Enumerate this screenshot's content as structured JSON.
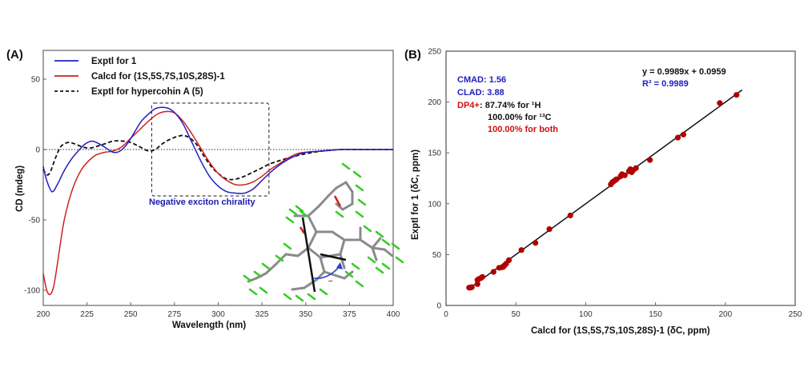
{
  "chart_data": [
    {
      "panel_label": "(A)",
      "type": "line",
      "xlabel": "Wavelength (nm)",
      "ylabel": "CD (mdeg)",
      "xlim": [
        200,
        400
      ],
      "ylim": [
        -110,
        70
      ],
      "xticks": [
        200,
        225,
        250,
        275,
        300,
        325,
        350,
        375,
        400
      ],
      "yticks": [
        50,
        0,
        -50,
        -100
      ],
      "zero_line": true,
      "legend_position": "top-left",
      "series": [
        {
          "name": "Exptl for 1",
          "color": "#2020c0",
          "style": "solid",
          "x": [
            200,
            202,
            205,
            208,
            212,
            216,
            220,
            224,
            228,
            232,
            236,
            240,
            244,
            248,
            252,
            256,
            260,
            264,
            268,
            272,
            276,
            280,
            285,
            290,
            295,
            300,
            305,
            310,
            315,
            320,
            325,
            330,
            335,
            340,
            345,
            350,
            360,
            370,
            380,
            390,
            400
          ],
          "y": [
            -12,
            -22,
            -30,
            -25,
            -15,
            -7,
            -1,
            4,
            6,
            4,
            1,
            -2,
            -1,
            4,
            12,
            20,
            25,
            29,
            30,
            29,
            25,
            18,
            5,
            -8,
            -19,
            -26,
            -30,
            -31,
            -31,
            -28,
            -22,
            -16,
            -11,
            -7,
            -4,
            -2,
            -1,
            0,
            0,
            0,
            0
          ]
        },
        {
          "name": "Calcd for (1S,5S,7S,10S,28S)-1",
          "color": "#d02020",
          "style": "solid",
          "x": [
            200,
            202,
            204,
            206,
            208,
            210,
            212,
            215,
            218,
            222,
            226,
            230,
            235,
            240,
            245,
            250,
            255,
            260,
            265,
            270,
            275,
            280,
            285,
            290,
            295,
            300,
            305,
            310,
            315,
            320,
            325,
            330,
            335,
            340,
            345,
            350,
            360,
            370,
            380,
            400
          ],
          "y": [
            -88,
            -100,
            -103,
            -97,
            -82,
            -65,
            -50,
            -35,
            -24,
            -14,
            -8,
            -4,
            -2,
            -1,
            2,
            8,
            14,
            20,
            25,
            27,
            26,
            20,
            11,
            1,
            -9,
            -17,
            -22,
            -25,
            -25,
            -23,
            -19,
            -14,
            -10,
            -6,
            -3,
            -2,
            -1,
            0,
            0,
            0
          ]
        },
        {
          "name": "Exptl for hypercohin A (5)",
          "color": "#111111",
          "style": "dashed",
          "x": [
            200,
            202,
            204,
            207,
            210,
            214,
            218,
            222,
            226,
            230,
            235,
            240,
            245,
            250,
            255,
            260,
            264,
            268,
            272,
            276,
            280,
            284,
            288,
            292,
            296,
            300,
            305,
            310,
            315,
            320,
            325,
            330,
            340,
            350,
            360,
            370,
            380,
            400
          ],
          "y": [
            -14,
            -18,
            -16,
            -6,
            2,
            5,
            4,
            2,
            1,
            2,
            4,
            6,
            6,
            5,
            2,
            -1,
            0,
            4,
            7,
            9,
            10,
            8,
            3,
            -5,
            -12,
            -17,
            -21,
            -21,
            -19,
            -16,
            -13,
            -10,
            -6,
            -3,
            -1,
            0,
            0,
            0
          ]
        }
      ],
      "highlight_box": {
        "x_range": [
          262,
          329
        ],
        "y_range": [
          -33,
          33
        ]
      },
      "annotation": "Negative exciton chirality",
      "annotation_color": "#1a1ab0"
    },
    {
      "panel_label": "(B)",
      "type": "scatter",
      "xlabel": "Calcd for (1S,5S,7S,10S,28S)-1  (δC, ppm)",
      "ylabel": "Exptl for 1 (δC, ppm)",
      "xlim": [
        0,
        250
      ],
      "ylim": [
        0,
        250
      ],
      "xticks": [
        0,
        50,
        100,
        150,
        200,
        250
      ],
      "yticks": [
        0,
        50,
        100,
        150,
        200,
        250
      ],
      "marker_color": "#b00000",
      "fit_line": {
        "slope": 0.9989,
        "intercept": 0.0959,
        "x_range": [
          16,
          212
        ]
      },
      "equation": "y = 0.9989x + 0.0959",
      "r2": "R² = 0.9989",
      "stats": {
        "cmad": "CMAD: 1.56",
        "clad": "CLAD: 3.88",
        "dp4_label": "DP4+",
        "dp4_h": ": 87.74% for ¹H",
        "dp4_c": "100.00% for ¹³C",
        "dp4_both": "100.00% for both"
      },
      "points": [
        [
          16.5,
          17.5
        ],
        [
          17.5,
          17.5
        ],
        [
          18.5,
          18
        ],
        [
          22.5,
          21
        ],
        [
          22.5,
          25
        ],
        [
          23.5,
          26
        ],
        [
          25,
          27
        ],
        [
          26,
          28
        ],
        [
          34,
          33
        ],
        [
          38,
          37
        ],
        [
          40,
          37.5
        ],
        [
          41,
          38
        ],
        [
          42,
          39.5
        ],
        [
          43,
          41
        ],
        [
          45,
          44.5
        ],
        [
          54,
          54.5
        ],
        [
          64,
          61.5
        ],
        [
          74,
          75
        ],
        [
          89,
          88.5
        ],
        [
          118,
          119
        ],
        [
          119,
          121
        ],
        [
          120,
          122
        ],
        [
          121,
          123
        ],
        [
          122,
          124
        ],
        [
          125,
          127
        ],
        [
          126,
          129
        ],
        [
          128,
          128
        ],
        [
          131,
          132
        ],
        [
          132,
          134
        ],
        [
          133,
          131
        ],
        [
          134,
          133
        ],
        [
          136,
          135
        ],
        [
          146,
          143
        ],
        [
          166,
          165
        ],
        [
          170,
          168
        ],
        [
          196,
          199
        ],
        [
          208,
          207
        ]
      ]
    }
  ]
}
